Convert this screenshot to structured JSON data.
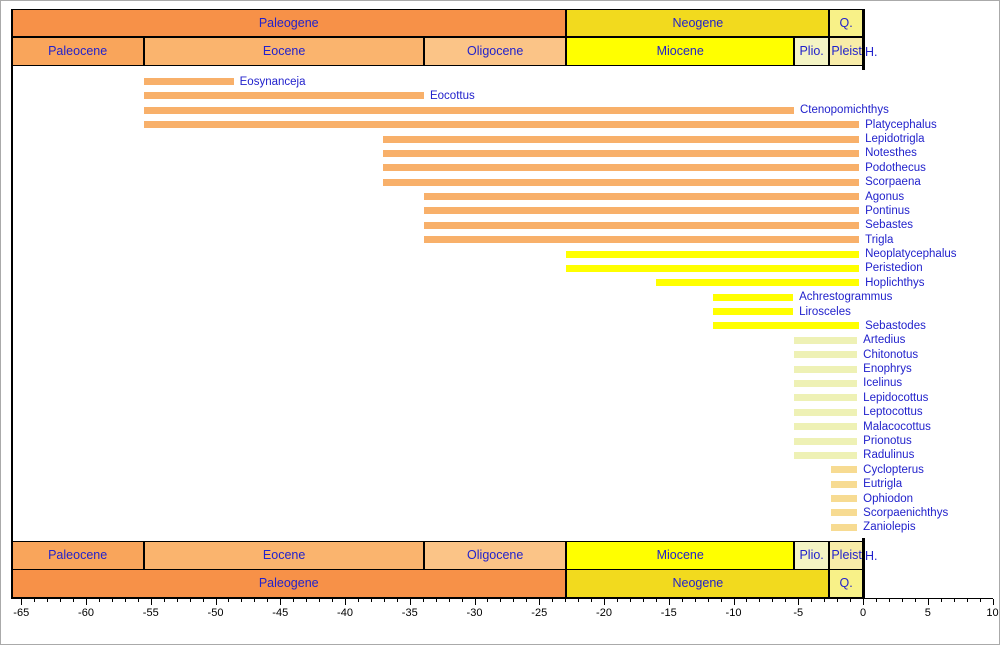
{
  "colors": {
    "paleogene": "#F79148",
    "neogene": "#F2DA1E",
    "quaternary": "#F8F188",
    "paleocene": "#F9A55B",
    "eocene": "#FAB46E",
    "oligocene": "#FBC487",
    "miocene": "#FFFF00",
    "pliocene": "#F4F4C4",
    "pleistocene": "#F8ECA8",
    "bar_orange": "#F8B06A",
    "bar_yellow": "#FFFF00",
    "bar_pale_green": "#EEF1B5",
    "bar_wheat": "#F7DB92",
    "label_blue": "#2222CC",
    "axis_black": "#000000"
  },
  "time_scale": {
    "periods": [
      {
        "name": "Paleogene",
        "start": -65.79,
        "end": -22.9,
        "color_key": "paleogene"
      },
      {
        "name": "Neogene",
        "start": -22.9,
        "end": -2.6,
        "color_key": "neogene"
      },
      {
        "name": "Q.",
        "start": -2.6,
        "end": 0,
        "color_key": "quaternary"
      }
    ],
    "epochs": [
      {
        "name": "Paleocene",
        "start": -65.79,
        "end": -55.5,
        "color_key": "paleocene",
        "align": "center"
      },
      {
        "name": "Eocene",
        "start": -55.5,
        "end": -33.9,
        "color_key": "eocene",
        "align": "center"
      },
      {
        "name": "Oligocene",
        "start": -33.9,
        "end": -22.9,
        "color_key": "oligocene",
        "align": "center"
      },
      {
        "name": "Miocene",
        "start": -22.9,
        "end": -5.33,
        "color_key": "miocene",
        "align": "center"
      },
      {
        "name": "Plio.",
        "start": -5.33,
        "end": -2.6,
        "color_key": "pliocene",
        "align": "center"
      },
      {
        "name": "Pleist",
        "start": -2.6,
        "end": 0,
        "color_key": "pleistocene",
        "align": "left"
      }
    ],
    "holocene_label": "H."
  },
  "chart_data": {
    "type": "bar",
    "orientation": "horizontal-range",
    "title": "",
    "xlabel": "",
    "xlim": [
      -65.8,
      10
    ],
    "x_major_ticks": [
      -65,
      -60,
      -55,
      -50,
      -45,
      -40,
      -35,
      -30,
      -25,
      -20,
      -15,
      -10,
      -5,
      0,
      5,
      10
    ],
    "x_minor_step": 1,
    "grid": false,
    "legend": false,
    "taxa": [
      {
        "name": "Eosynanceja",
        "start": -55.5,
        "end": -48.6,
        "color_key": "bar_orange"
      },
      {
        "name": "Eocottus",
        "start": -55.5,
        "end": -33.9,
        "color_key": "bar_orange"
      },
      {
        "name": "Ctenopomichthys",
        "start": -55.5,
        "end": -5.33,
        "color_key": "bar_orange"
      },
      {
        "name": "Platycephalus",
        "start": -55.5,
        "end": -0.3,
        "color_key": "bar_orange"
      },
      {
        "name": "Lepidotrigla",
        "start": -37.1,
        "end": -0.3,
        "color_key": "bar_orange"
      },
      {
        "name": "Notesthes",
        "start": -37.1,
        "end": -0.3,
        "color_key": "bar_orange"
      },
      {
        "name": "Podothecus",
        "start": -37.1,
        "end": -0.3,
        "color_key": "bar_orange"
      },
      {
        "name": "Scorpaena",
        "start": -37.1,
        "end": -0.3,
        "color_key": "bar_orange"
      },
      {
        "name": "Agonus",
        "start": -33.9,
        "end": -0.3,
        "color_key": "bar_orange"
      },
      {
        "name": "Pontinus",
        "start": -33.9,
        "end": -0.3,
        "color_key": "bar_orange"
      },
      {
        "name": "Sebastes",
        "start": -33.9,
        "end": -0.3,
        "color_key": "bar_orange"
      },
      {
        "name": "Trigla",
        "start": -33.9,
        "end": -0.3,
        "color_key": "bar_orange"
      },
      {
        "name": "Neoplatycephalus",
        "start": -22.9,
        "end": -0.3,
        "color_key": "bar_yellow"
      },
      {
        "name": "Peristedion",
        "start": -22.9,
        "end": -0.3,
        "color_key": "bar_yellow"
      },
      {
        "name": "Hoplichthys",
        "start": -16.0,
        "end": -0.3,
        "color_key": "bar_yellow"
      },
      {
        "name": "Achrestogrammus",
        "start": -11.6,
        "end": -5.4,
        "color_key": "bar_yellow"
      },
      {
        "name": "Lirosceles",
        "start": -11.6,
        "end": -5.4,
        "color_key": "bar_yellow"
      },
      {
        "name": "Sebastodes",
        "start": -11.6,
        "end": -0.3,
        "color_key": "bar_yellow"
      },
      {
        "name": "Artedius",
        "start": -5.33,
        "end": -0.45,
        "color_key": "bar_pale_green"
      },
      {
        "name": "Chitonotus",
        "start": -5.33,
        "end": -0.45,
        "color_key": "bar_pale_green"
      },
      {
        "name": "Enophrys",
        "start": -5.33,
        "end": -0.45,
        "color_key": "bar_pale_green"
      },
      {
        "name": "Icelinus",
        "start": -5.33,
        "end": -0.45,
        "color_key": "bar_pale_green"
      },
      {
        "name": "Lepidocottus",
        "start": -5.33,
        "end": -0.45,
        "color_key": "bar_pale_green"
      },
      {
        "name": "Leptocottus",
        "start": -5.33,
        "end": -0.45,
        "color_key": "bar_pale_green"
      },
      {
        "name": "Malacocottus",
        "start": -5.33,
        "end": -0.45,
        "color_key": "bar_pale_green"
      },
      {
        "name": "Prionotus",
        "start": -5.33,
        "end": -0.45,
        "color_key": "bar_pale_green"
      },
      {
        "name": "Radulinus",
        "start": -5.33,
        "end": -0.45,
        "color_key": "bar_pale_green"
      },
      {
        "name": "Cyclopterus",
        "start": -2.5,
        "end": -0.45,
        "color_key": "bar_wheat"
      },
      {
        "name": "Eutrigla",
        "start": -2.5,
        "end": -0.45,
        "color_key": "bar_wheat"
      },
      {
        "name": "Ophiodon",
        "start": -2.5,
        "end": -0.45,
        "color_key": "bar_wheat"
      },
      {
        "name": "Scorpaenichthys",
        "start": -2.5,
        "end": -0.45,
        "color_key": "bar_wheat"
      },
      {
        "name": "Zaniolepis",
        "start": -2.5,
        "end": -0.45,
        "color_key": "bar_wheat"
      }
    ]
  }
}
